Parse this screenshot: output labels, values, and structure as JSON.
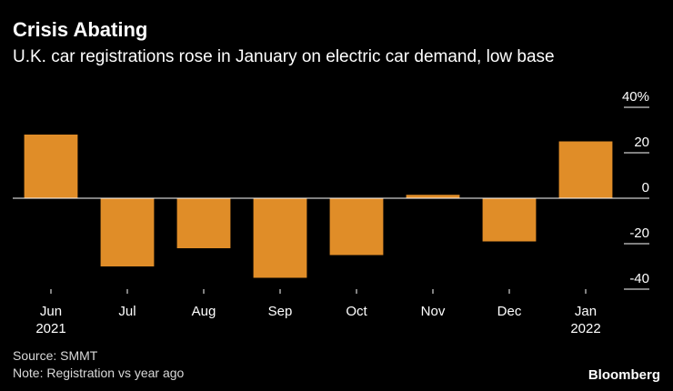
{
  "header": {
    "title": "Crisis Abating",
    "subtitle": "U.K. car registrations rose in January on electric car demand, low base"
  },
  "footer": {
    "source": "Source: SMMT",
    "note": "Note: Registration vs year ago",
    "brand": "Bloomberg"
  },
  "chart_data": {
    "type": "bar",
    "categories": [
      "Jun",
      "Jul",
      "Aug",
      "Sep",
      "Oct",
      "Nov",
      "Dec",
      "Jan"
    ],
    "category_year_labels": [
      "2021",
      "",
      "",
      "",
      "",
      "",
      "",
      "2022"
    ],
    "values": [
      28,
      -30,
      -22,
      -35,
      -25,
      1.5,
      -19,
      25
    ],
    "ylim": [
      -40,
      40
    ],
    "yticks": [
      -40,
      -20,
      0,
      20,
      40
    ],
    "ytick_labels": [
      "-40",
      "-20",
      "0",
      "20",
      "40%"
    ],
    "y_axis_position": "right",
    "grid": false,
    "bar_color": "#e08d28",
    "zero_line_color": "#ffffff"
  }
}
